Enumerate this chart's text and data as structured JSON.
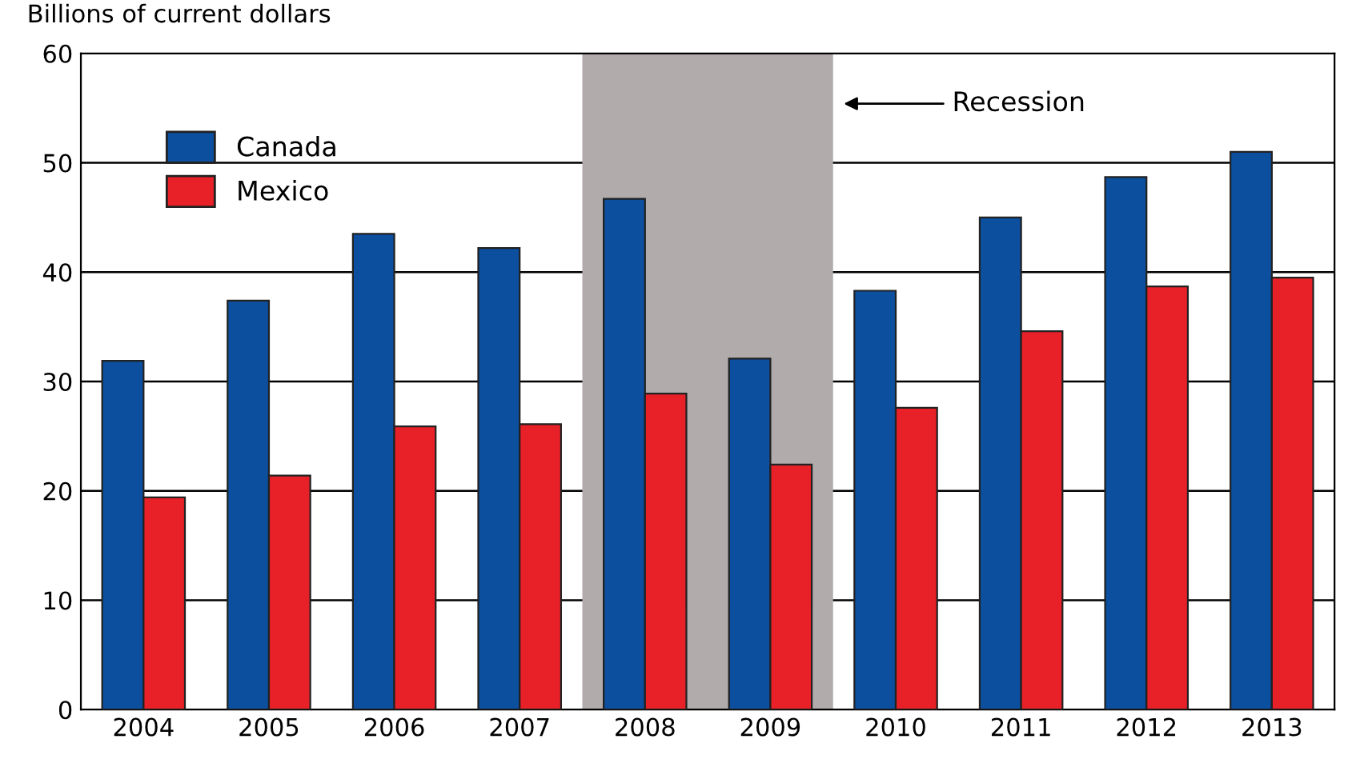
{
  "chart_data": {
    "type": "bar",
    "ylabel": "Billions of current dollars",
    "categories": [
      "2004",
      "2005",
      "2006",
      "2007",
      "2008",
      "2009",
      "2010",
      "2011",
      "2012",
      "2013"
    ],
    "series": [
      {
        "name": "Canada",
        "color": "#0b4f9e",
        "values": [
          31.9,
          37.4,
          43.5,
          42.2,
          46.7,
          32.1,
          38.3,
          45.0,
          48.7,
          51.0
        ]
      },
      {
        "name": "Mexico",
        "color": "#e82027",
        "values": [
          19.4,
          21.4,
          25.9,
          26.1,
          28.9,
          22.4,
          27.6,
          34.6,
          38.7,
          39.5
        ]
      }
    ],
    "ylim": [
      0,
      60
    ],
    "yticks": [
      0,
      10,
      20,
      30,
      40,
      50,
      60
    ],
    "grid": "y",
    "legend": "top left",
    "bands": [
      {
        "axis": "x",
        "from": "2008",
        "to": "2009",
        "label": "Recession",
        "color": "#b1abab"
      }
    ]
  }
}
